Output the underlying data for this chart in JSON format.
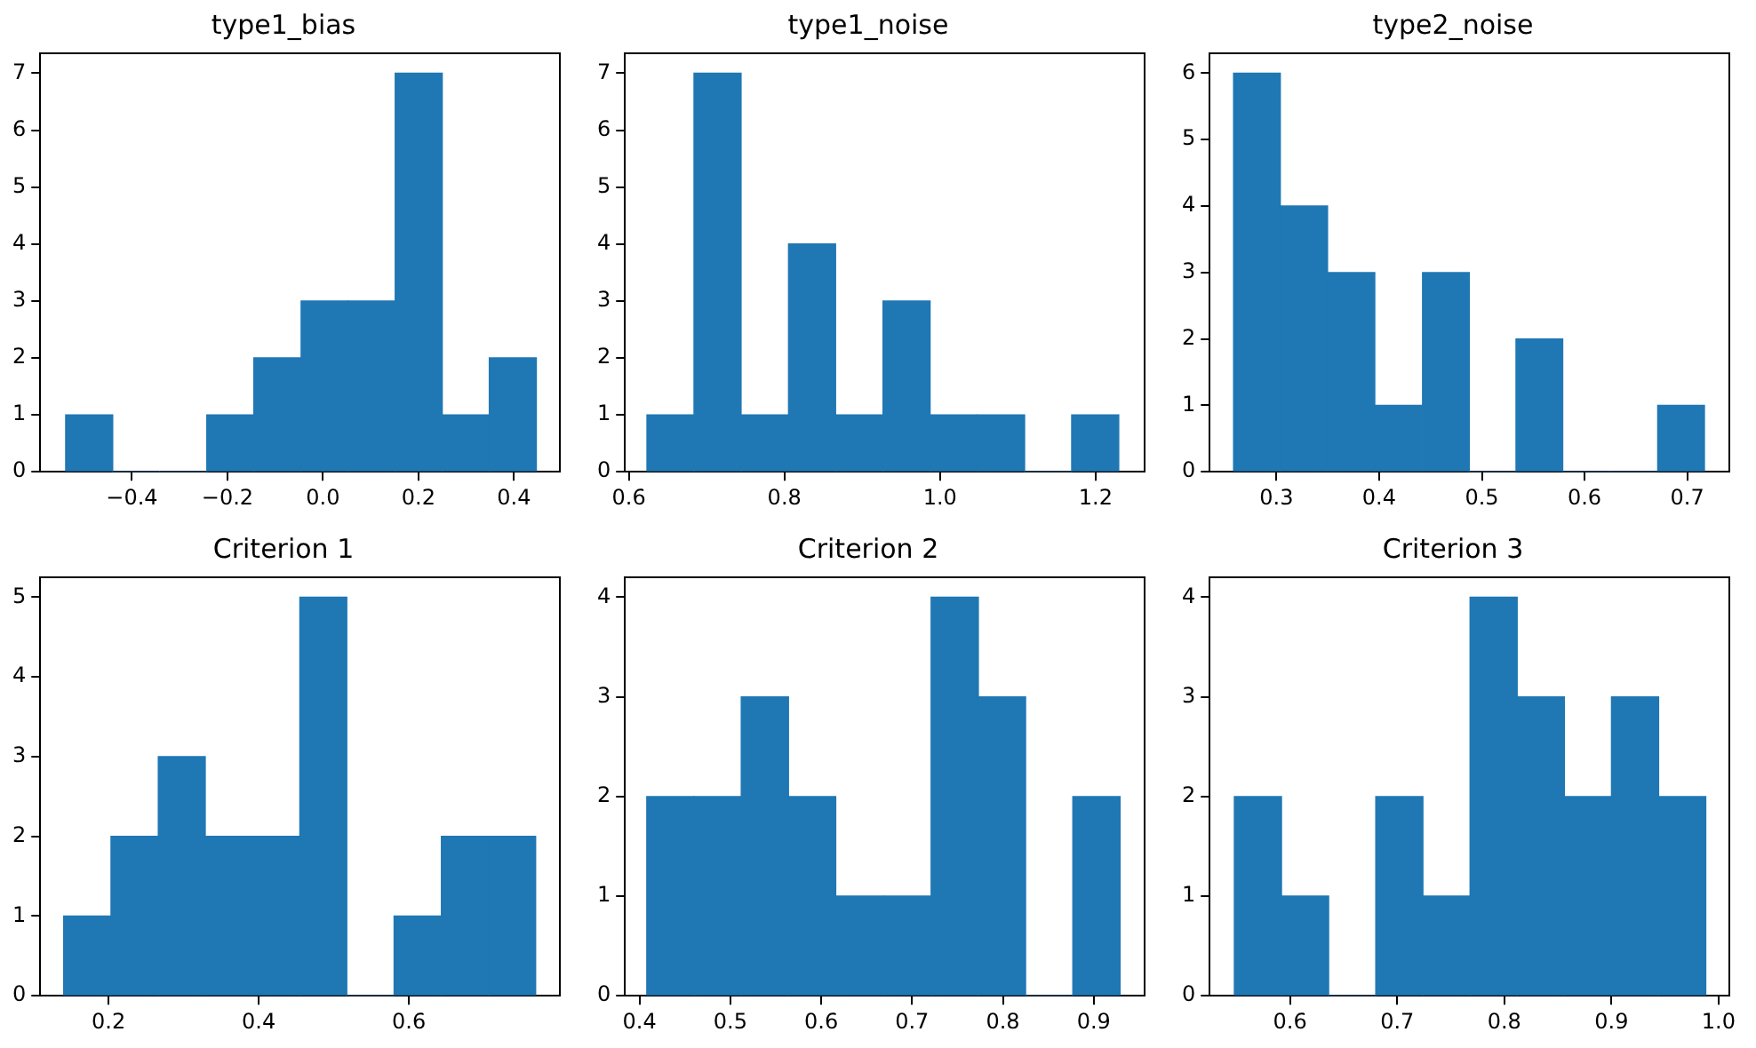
{
  "chart_data": [
    {
      "type": "histogram",
      "title": "type1_bias",
      "bins": [
        -0.539,
        -0.44,
        -0.342,
        -0.243,
        -0.145,
        -0.046,
        0.053,
        0.151,
        0.25,
        0.348,
        0.447
      ],
      "values": [
        1,
        0,
        0,
        1,
        2,
        3,
        3,
        7,
        1,
        2
      ],
      "color": "#1f77b4",
      "xlim": [
        -0.592,
        0.496
      ],
      "xticks": [
        {
          "value": -0.4,
          "label": "−0.4"
        },
        {
          "value": -0.2,
          "label": "−0.2"
        },
        {
          "value": 0,
          "label": "0.0"
        },
        {
          "value": 0.2,
          "label": "0.2"
        },
        {
          "value": 0.4,
          "label": "0.4"
        }
      ],
      "ylim": [
        0,
        7.35
      ],
      "yticks": [
        0,
        1,
        2,
        3,
        4,
        5,
        6,
        7
      ]
    },
    {
      "type": "histogram",
      "title": "type1_noise",
      "bins": [
        0.623,
        0.684,
        0.744,
        0.805,
        0.866,
        0.927,
        0.987,
        1.048,
        1.109,
        1.169,
        1.23
      ],
      "values": [
        1,
        7,
        1,
        4,
        1,
        3,
        1,
        1,
        0,
        1
      ],
      "color": "#1f77b4",
      "xlim": [
        0.595,
        1.263
      ],
      "xticks": [
        {
          "value": 0.6,
          "label": "0.6"
        },
        {
          "value": 0.8,
          "label": "0.8"
        },
        {
          "value": 1,
          "label": "1.0"
        },
        {
          "value": 1.2,
          "label": "1.2"
        }
      ],
      "ylim": [
        0,
        7.35
      ],
      "yticks": [
        0,
        1,
        2,
        3,
        4,
        5,
        6,
        7
      ]
    },
    {
      "type": "histogram",
      "title": "type2_noise",
      "bins": [
        0.258,
        0.304,
        0.35,
        0.396,
        0.442,
        0.488,
        0.533,
        0.579,
        0.625,
        0.671,
        0.717
      ],
      "values": [
        6,
        4,
        3,
        1,
        3,
        0,
        2,
        0,
        0,
        1
      ],
      "color": "#1f77b4",
      "xlim": [
        0.235,
        0.741
      ],
      "xticks": [
        0.3,
        0.4,
        0.5,
        0.6,
        0.7
      ],
      "ylim": [
        0,
        6.3
      ],
      "yticks": [
        0,
        1,
        2,
        3,
        4,
        5,
        6
      ]
    },
    {
      "type": "histogram",
      "title": "Criterion 1",
      "bins": [
        0.14,
        0.203,
        0.266,
        0.329,
        0.392,
        0.455,
        0.517,
        0.58,
        0.643,
        0.706,
        0.769
      ],
      "values": [
        1,
        2,
        3,
        2,
        2,
        5,
        0,
        1,
        2,
        2
      ],
      "color": "#1f77b4",
      "xlim": [
        0.109,
        0.801
      ],
      "xticks": [
        0.2,
        0.4,
        0.6
      ],
      "ylim": [
        0,
        5.25
      ],
      "yticks": [
        0,
        1,
        2,
        3,
        4,
        5
      ]
    },
    {
      "type": "histogram",
      "title": "Criterion 2",
      "bins": [
        0.408,
        0.46,
        0.512,
        0.564,
        0.616,
        0.669,
        0.721,
        0.773,
        0.825,
        0.877,
        0.929
      ],
      "values": [
        2,
        2,
        3,
        2,
        1,
        1,
        4,
        3,
        0,
        2
      ],
      "color": "#1f77b4",
      "xlim": [
        0.384,
        0.956
      ],
      "xticks": [
        0.4,
        0.5,
        0.6,
        0.7,
        0.8,
        0.9
      ],
      "ylim": [
        0,
        4.2
      ],
      "yticks": [
        0,
        1,
        2,
        3,
        4
      ]
    },
    {
      "type": "histogram",
      "title": "Criterion 3",
      "bins": [
        0.548,
        0.592,
        0.636,
        0.68,
        0.724,
        0.768,
        0.812,
        0.856,
        0.9,
        0.944,
        0.988
      ],
      "values": [
        2,
        1,
        0,
        2,
        1,
        4,
        3,
        2,
        3,
        2
      ],
      "color": "#1f77b4",
      "xlim": [
        0.525,
        1.01
      ],
      "xticks": [
        0.6,
        0.7,
        0.8,
        0.9,
        {
          "value": 1,
          "label": "1.0"
        }
      ],
      "ylim": [
        0,
        4.2
      ],
      "yticks": [
        0,
        1,
        2,
        3,
        4
      ]
    }
  ]
}
